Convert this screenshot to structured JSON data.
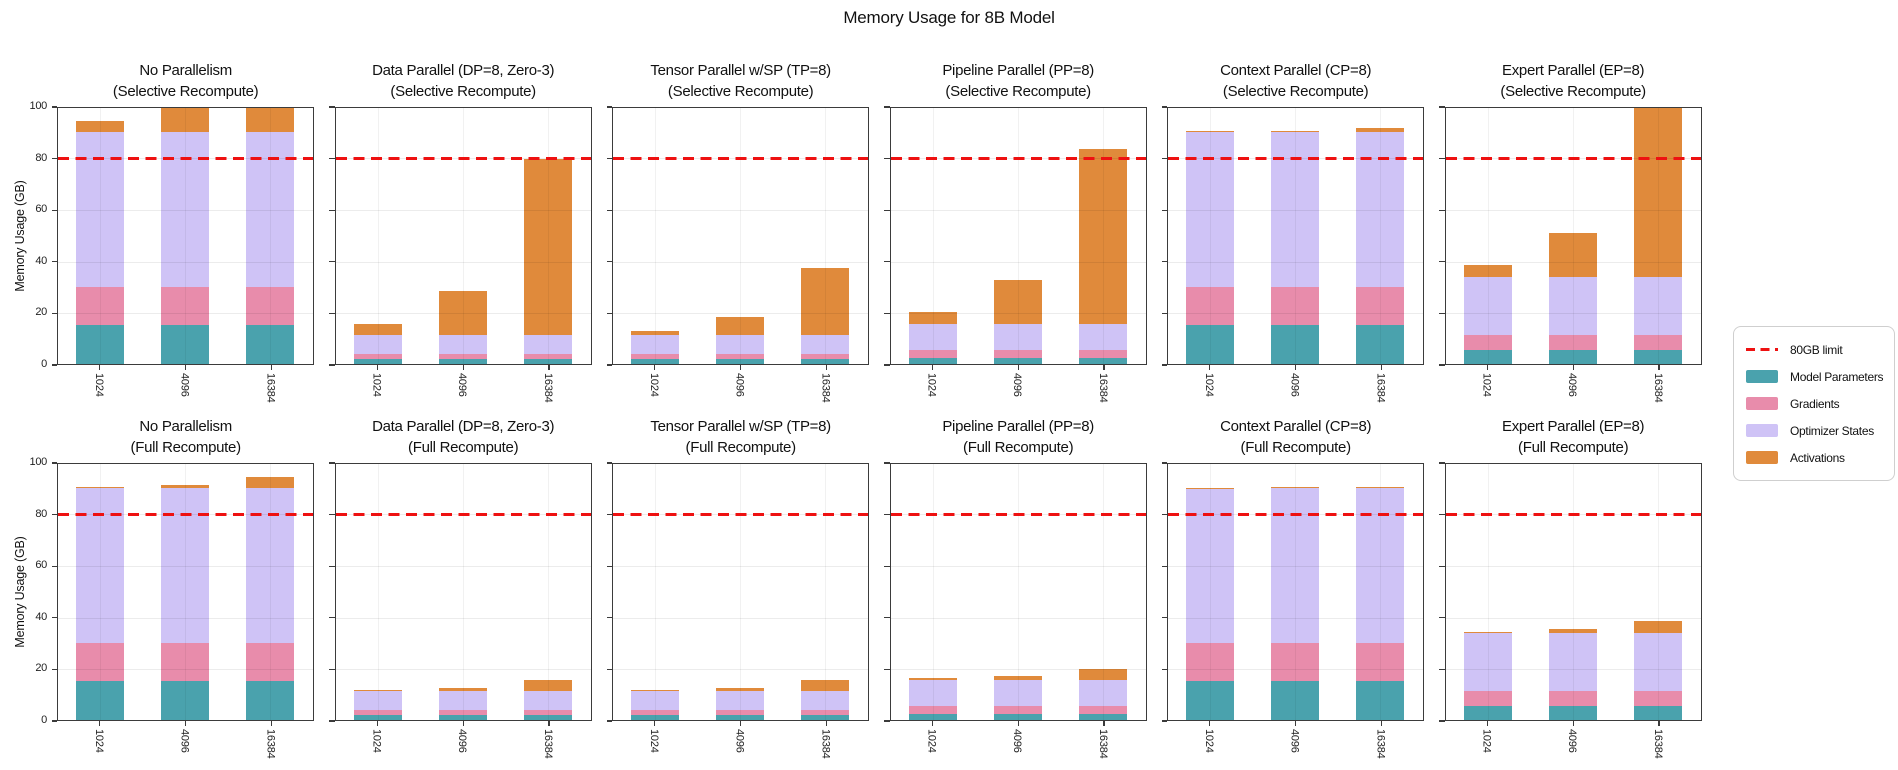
{
  "title": "Memory Usage for 8B Model",
  "chart_data": {
    "type": "bar",
    "stacked": true,
    "rows": 2,
    "cols": 6,
    "title": "Memory Usage for 8B Model",
    "ylabel": "Memory Usage (GB)",
    "ylim": [
      0,
      100
    ],
    "yticks": [
      0,
      20,
      40,
      60,
      80,
      100
    ],
    "categories": [
      "1024",
      "4096",
      "16384"
    ],
    "grid": true,
    "legend_position": "right-center",
    "limit_line": {
      "label": "80GB limit",
      "value": 80,
      "color": "#ee1111",
      "style": "dashed"
    },
    "components": [
      {
        "name": "Model Parameters",
        "color": "#4aa2ad"
      },
      {
        "name": "Gradients",
        "color": "#e88cab"
      },
      {
        "name": "Optimizer States",
        "color": "#cfc3f6"
      },
      {
        "name": "Activations",
        "color": "#e08a3b"
      }
    ],
    "subplots": [
      {
        "title_line1": "No Parallelism",
        "title_line2": "(Selective Recompute)",
        "series": {
          "Model Parameters": [
            15,
            15,
            15
          ],
          "Gradients": [
            15,
            15,
            15
          ],
          "Optimizer States": [
            60,
            60,
            60
          ],
          "Activations": [
            4.3,
            17,
            68
          ]
        }
      },
      {
        "title_line1": "Data Parallel (DP=8, Zero-3)",
        "title_line2": "(Selective Recompute)",
        "series": {
          "Model Parameters": [
            1.9,
            1.9,
            1.9
          ],
          "Gradients": [
            1.9,
            1.9,
            1.9
          ],
          "Optimizer States": [
            7.5,
            7.5,
            7.5
          ],
          "Activations": [
            4.3,
            17,
            68
          ]
        }
      },
      {
        "title_line1": "Tensor Parallel w/SP (TP=8)",
        "title_line2": "(Selective Recompute)",
        "series": {
          "Model Parameters": [
            1.9,
            1.9,
            1.9
          ],
          "Gradients": [
            1.9,
            1.9,
            1.9
          ],
          "Optimizer States": [
            7.5,
            7.5,
            7.5
          ],
          "Activations": [
            1.5,
            6.8,
            25.8
          ]
        }
      },
      {
        "title_line1": "Pipeline Parallel (PP=8)",
        "title_line2": "(Selective Recompute)",
        "series": {
          "Model Parameters": [
            2.5,
            2.5,
            2.5
          ],
          "Gradients": [
            3,
            3,
            3
          ],
          "Optimizer States": [
            10,
            10,
            10
          ],
          "Activations": [
            4.5,
            17,
            68
          ]
        }
      },
      {
        "title_line1": "Context Parallel (CP=8)",
        "title_line2": "(Selective Recompute)",
        "series": {
          "Model Parameters": [
            15,
            15,
            15
          ],
          "Gradients": [
            15,
            15,
            15
          ],
          "Optimizer States": [
            60,
            60,
            60
          ],
          "Activations": [
            0.2,
            0.5,
            1.6
          ]
        }
      },
      {
        "title_line1": "Expert Parallel (EP=8)",
        "title_line2": "(Selective Recompute)",
        "series": {
          "Model Parameters": [
            5.6,
            5.6,
            5.6
          ],
          "Gradients": [
            5.6,
            5.6,
            5.6
          ],
          "Optimizer States": [
            22.5,
            22.5,
            22.5
          ],
          "Activations": [
            4.5,
            17,
            68
          ]
        }
      },
      {
        "title_line1": "No Parallelism",
        "title_line2": "(Full Recompute)",
        "series": {
          "Model Parameters": [
            15,
            15,
            15
          ],
          "Gradients": [
            15,
            15,
            15
          ],
          "Optimizer States": [
            60,
            60,
            60
          ],
          "Activations": [
            0.3,
            1.1,
            4.3
          ]
        }
      },
      {
        "title_line1": "Data Parallel (DP=8, Zero-3)",
        "title_line2": "(Full Recompute)",
        "series": {
          "Model Parameters": [
            1.9,
            1.9,
            1.9
          ],
          "Gradients": [
            1.9,
            1.9,
            1.9
          ],
          "Optimizer States": [
            7.5,
            7.5,
            7.5
          ],
          "Activations": [
            0.3,
            1.1,
            4.3
          ]
        }
      },
      {
        "title_line1": "Tensor Parallel w/SP (TP=8)",
        "title_line2": "(Full Recompute)",
        "series": {
          "Model Parameters": [
            1.9,
            1.9,
            1.9
          ],
          "Gradients": [
            1.9,
            1.9,
            1.9
          ],
          "Optimizer States": [
            7.5,
            7.5,
            7.5
          ],
          "Activations": [
            0.3,
            1.1,
            4.3
          ]
        }
      },
      {
        "title_line1": "Pipeline Parallel (PP=8)",
        "title_line2": "(Full Recompute)",
        "series": {
          "Model Parameters": [
            2.5,
            2.5,
            2.5
          ],
          "Gradients": [
            3,
            3,
            3
          ],
          "Optimizer States": [
            10,
            10,
            10
          ],
          "Activations": [
            0.8,
            1.6,
            4.4
          ]
        }
      },
      {
        "title_line1": "Context Parallel (CP=8)",
        "title_line2": "(Full Recompute)",
        "series": {
          "Model Parameters": [
            15,
            15,
            15
          ],
          "Gradients": [
            15,
            15,
            15
          ],
          "Optimizer States": [
            60,
            60,
            60
          ],
          "Activations": [
            0.1,
            0.2,
            0.4
          ]
        }
      },
      {
        "title_line1": "Expert Parallel (EP=8)",
        "title_line2": "(Full Recompute)",
        "series": {
          "Model Parameters": [
            5.6,
            5.6,
            5.6
          ],
          "Gradients": [
            5.6,
            5.6,
            5.6
          ],
          "Optimizer States": [
            22.5,
            22.5,
            22.5
          ],
          "Activations": [
            0.5,
            1.4,
            4.6
          ]
        }
      }
    ]
  }
}
